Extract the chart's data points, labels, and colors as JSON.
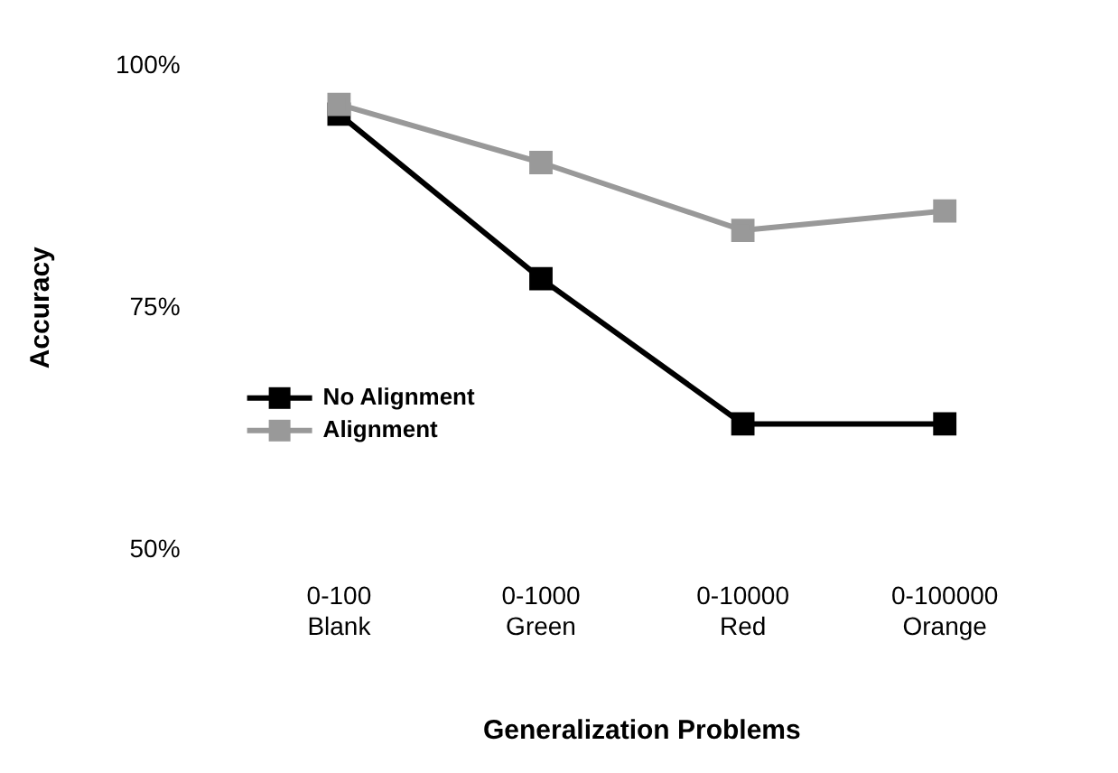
{
  "chart_data": {
    "type": "line",
    "xlabel": "Generalization Problems",
    "ylabel": "Accuracy",
    "categories": [
      "0-100\nBlank",
      "0-1000\nGreen",
      "0-10000\nRed",
      "0-100000\nOrange"
    ],
    "series": [
      {
        "name": "No Alignment",
        "color": "#000000",
        "values": [
          95,
          78,
          63,
          63
        ]
      },
      {
        "name": "Alignment",
        "color": "#999999",
        "values": [
          96,
          90,
          83,
          85
        ]
      }
    ],
    "ylim": [
      50,
      100
    ],
    "yticks": [
      {
        "value": 50,
        "label": "50%"
      },
      {
        "value": 75,
        "label": "75%"
      },
      {
        "value": 100,
        "label": "100%"
      }
    ],
    "grid": false,
    "legend": "center left",
    "marker": "square",
    "line_style": "solid"
  }
}
